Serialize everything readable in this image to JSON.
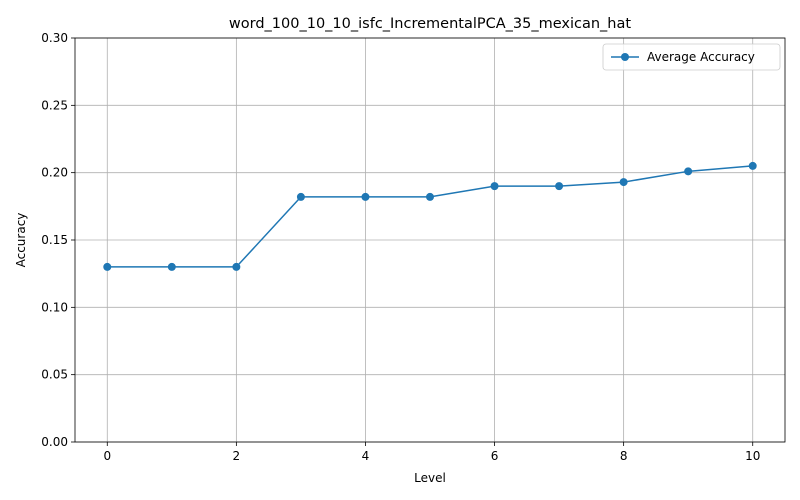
{
  "chart_data": {
    "type": "line",
    "title": "word_100_10_10_isfc_IncrementalPCA_35_mexican_hat",
    "xlabel": "Level",
    "ylabel": "Accuracy",
    "xlim": [
      -0.5,
      10.5
    ],
    "ylim": [
      0.0,
      0.3
    ],
    "xticks": [
      0,
      2,
      4,
      6,
      8,
      10
    ],
    "xtick_labels": [
      "0",
      "2",
      "4",
      "6",
      "8",
      "10"
    ],
    "yticks": [
      0.0,
      0.05,
      0.1,
      0.15,
      0.2,
      0.25,
      0.3
    ],
    "ytick_labels": [
      "0.00",
      "0.05",
      "0.10",
      "0.15",
      "0.20",
      "0.25",
      "0.30"
    ],
    "grid": true,
    "legend_position": "upper right",
    "series": [
      {
        "name": "Average Accuracy",
        "color": "#1f77b4",
        "marker": "circle",
        "x": [
          0,
          1,
          2,
          3,
          4,
          5,
          6,
          7,
          8,
          9,
          10
        ],
        "y": [
          0.13,
          0.13,
          0.13,
          0.182,
          0.182,
          0.182,
          0.19,
          0.19,
          0.193,
          0.201,
          0.205
        ]
      }
    ]
  }
}
